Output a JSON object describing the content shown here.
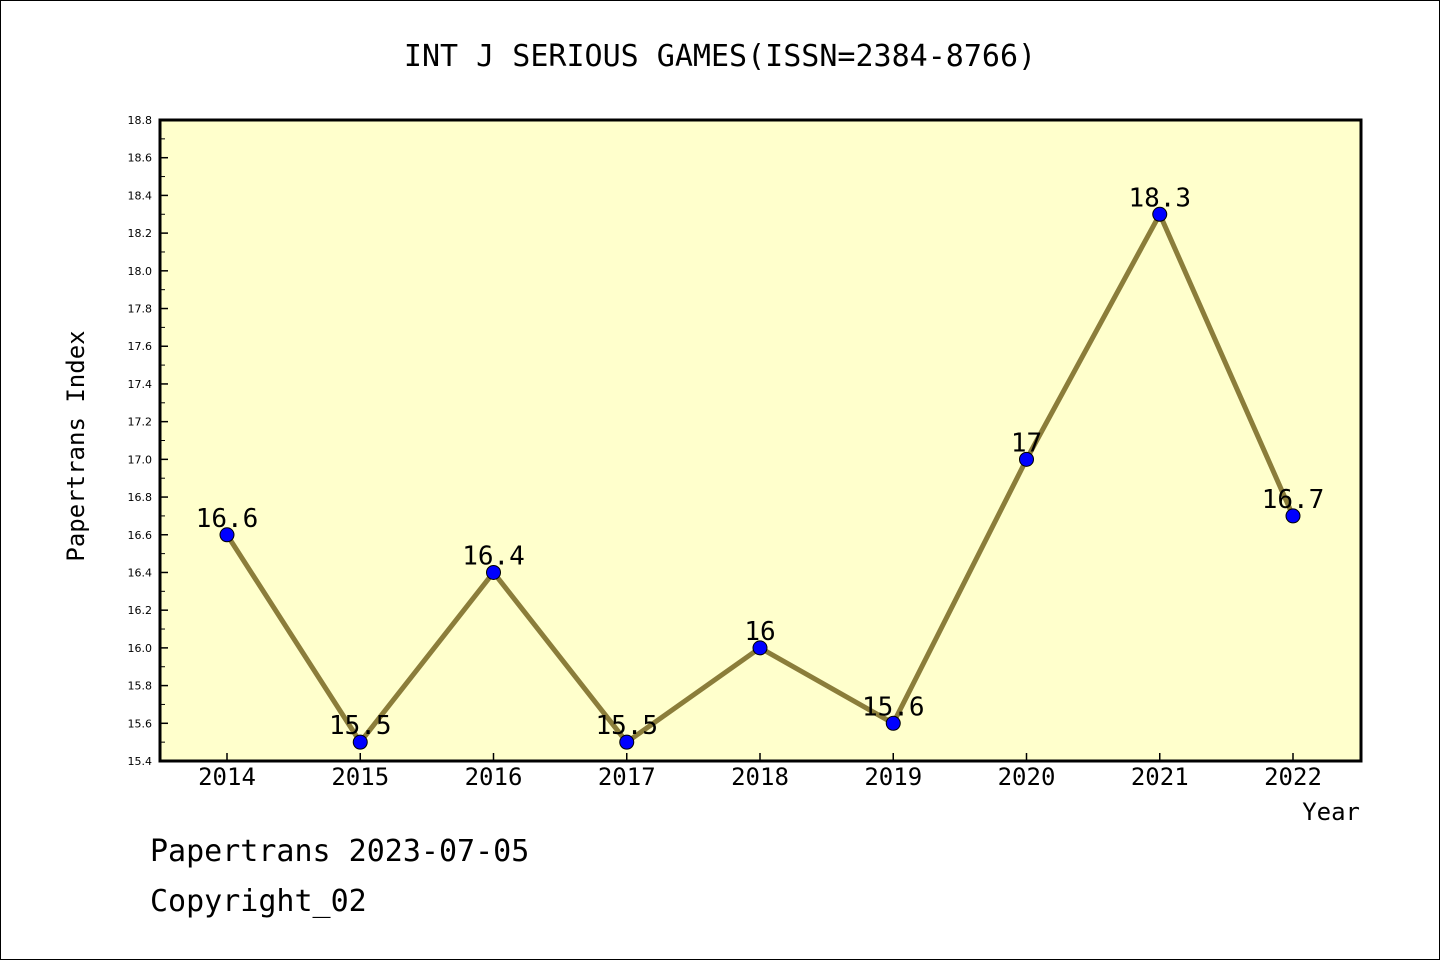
{
  "chart_data": {
    "type": "line",
    "title": "INT J SERIOUS GAMES(ISSN=2384-8766)",
    "xlabel": "Year",
    "ylabel": "Papertrans Index",
    "categories": [
      "2014",
      "2015",
      "2016",
      "2017",
      "2018",
      "2019",
      "2020",
      "2021",
      "2022"
    ],
    "series": [
      {
        "values": [
          16.6,
          15.5,
          16.4,
          15.5,
          16.0,
          15.6,
          17.0,
          18.3,
          16.7
        ],
        "labels": [
          "16.6",
          "15.5",
          "16.4",
          "15.5",
          "16",
          "15.6",
          "17",
          "18.3",
          "16.7"
        ]
      }
    ],
    "ylim": [
      15.4,
      18.8
    ],
    "yticks": [
      "15.4",
      "15.6",
      "15.8",
      "16.0",
      "16.2",
      "16.4",
      "16.6",
      "16.8",
      "17.0",
      "17.2",
      "17.4",
      "17.6",
      "17.8",
      "18.0",
      "18.2",
      "18.4",
      "18.6",
      "18.8"
    ],
    "grid": false,
    "colors": {
      "plot_bg": "#ffffcc",
      "line": "#8b7d3a",
      "marker": "#0000ff"
    }
  },
  "footer": {
    "line1": "Papertrans 2023-07-05",
    "line2": "Copyright_02"
  }
}
